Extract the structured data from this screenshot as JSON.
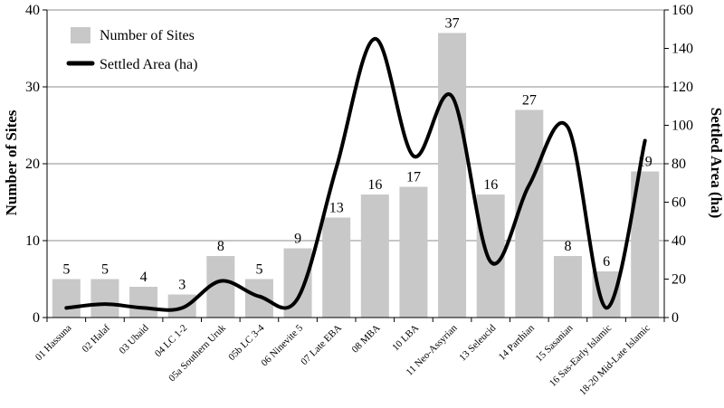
{
  "chart_data": {
    "type": "bar",
    "categories": [
      "01 Hassuna",
      "02 Halaf",
      "03 Ubaid",
      "04 LC 1-2",
      "05a Southern Uruk",
      "05b LC 3-4",
      "06 Ninevite 5",
      "07 Late EBA",
      "08 MBA",
      "10 LBA",
      "11 Neo-Assyrian",
      "13 Seleucid",
      "14 Parthian",
      "15 Sasanian",
      "16 Sas-Early Islamic",
      "18-20 Mid-Late Islamic"
    ],
    "series": [
      {
        "name": "Number of Sites",
        "type": "bar",
        "axis": "left",
        "color": "#c8c8c8",
        "values": [
          5,
          5,
          4,
          3,
          8,
          5,
          9,
          13,
          16,
          17,
          37,
          16,
          27,
          8,
          6,
          19
        ]
      },
      {
        "name": "Settled Area (ha)",
        "type": "line",
        "axis": "right",
        "color": "#000000",
        "values": [
          5,
          7,
          5,
          5,
          19,
          11,
          10,
          78,
          145,
          84,
          115,
          29,
          69,
          99,
          5,
          92
        ]
      }
    ],
    "ylabel": "Number of Sites",
    "ylabel_right": "Settled Area (ha)",
    "ylim": [
      0,
      40
    ],
    "yticks": [
      0,
      10,
      20,
      30,
      40
    ],
    "ylim_right": [
      0,
      160
    ],
    "yticks_right": [
      0,
      20,
      40,
      60,
      80,
      100,
      120,
      140,
      160
    ],
    "grid": true,
    "legend": "top-left"
  }
}
